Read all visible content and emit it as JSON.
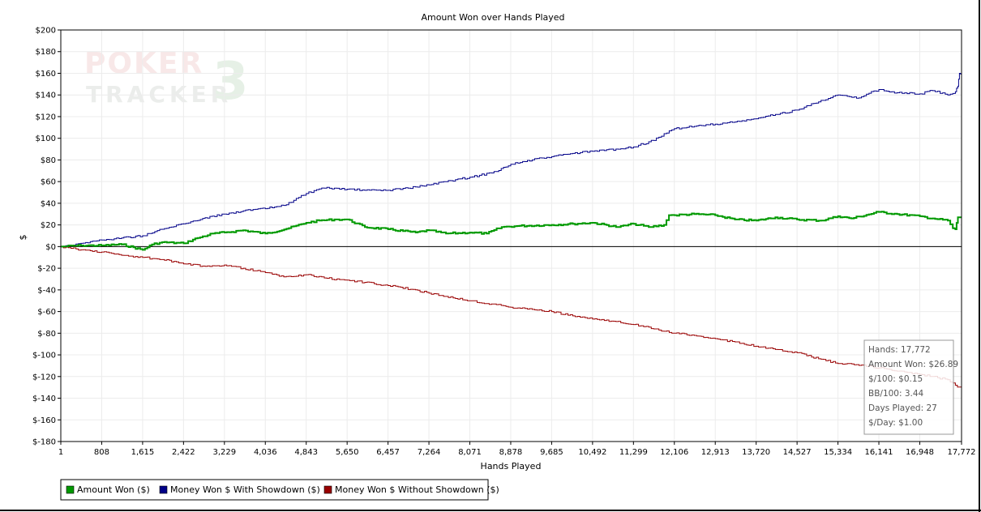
{
  "chart_data": {
    "type": "line",
    "title": "Amount Won over Hands Played",
    "xlabel": "Hands Played",
    "ylabel": "$",
    "xlim": [
      1,
      17772
    ],
    "ylim": [
      -180,
      200
    ],
    "x_ticks": [
      1,
      808,
      1615,
      2422,
      3229,
      4036,
      4843,
      5650,
      6457,
      7264,
      8071,
      8878,
      9685,
      10492,
      11299,
      12106,
      12913,
      13720,
      14527,
      15334,
      16141,
      16948,
      17772
    ],
    "x_tick_labels": [
      "1",
      "808",
      "1,615",
      "2,422",
      "3,229",
      "4,036",
      "4,843",
      "5,650",
      "6,457",
      "7,264",
      "8,071",
      "8,878",
      "9,685",
      "10,492",
      "11,299",
      "12,106",
      "12,913",
      "13,720",
      "14,527",
      "15,334",
      "16,141",
      "16,948",
      "17,772"
    ],
    "y_ticks": [
      200,
      180,
      160,
      140,
      120,
      100,
      80,
      60,
      40,
      20,
      0,
      -20,
      -40,
      -60,
      -80,
      -100,
      -120,
      -140,
      -160,
      -180
    ],
    "y_tick_labels": [
      "$200",
      "$180",
      "$160",
      "$140",
      "$120",
      "$100",
      "$80",
      "$60",
      "$40",
      "$20",
      "$0",
      "$-20",
      "$-40",
      "$-60",
      "$-80",
      "$-100",
      "$-120",
      "$-140",
      "$-160",
      "$-180"
    ],
    "grid": true,
    "legend_position": "bottom-left",
    "series": [
      {
        "name": "Amount Won ($)",
        "color": "#009900",
        "x": [
          1,
          400,
          800,
          1200,
          1615,
          1800,
          2000,
          2422,
          2700,
          3000,
          3229,
          3600,
          4036,
          4500,
          4843,
          5100,
          5400,
          5650,
          6000,
          6457,
          7000,
          7264,
          7600,
          8071,
          8400,
          8700,
          9000,
          9685,
          10100,
          10492,
          11000,
          11299,
          11600,
          11900,
          12000,
          12106,
          12500,
          12913,
          13300,
          13720,
          14100,
          14527,
          15000,
          15334,
          15600,
          16141,
          16500,
          16948,
          17200,
          17500,
          17600,
          17650,
          17700,
          17772
        ],
        "values": [
          0,
          1,
          1,
          2,
          -3,
          2,
          4,
          3,
          8,
          12,
          13,
          15,
          12,
          17,
          22,
          24,
          25,
          25,
          18,
          16,
          13,
          15,
          12,
          13,
          12,
          18,
          19,
          20,
          21,
          22,
          18,
          21,
          18,
          20,
          29,
          29,
          30,
          29,
          25,
          24,
          27,
          25,
          24,
          28,
          26,
          32,
          30,
          28,
          26,
          24,
          17,
          16,
          27,
          27
        ]
      },
      {
        "name": "Money Won $ With Showdown ($)",
        "color": "#000088",
        "x": [
          1,
          400,
          808,
          1200,
          1615,
          2000,
          2422,
          2800,
          3229,
          3600,
          4036,
          4400,
          4843,
          5200,
          5650,
          6000,
          6457,
          7000,
          7264,
          7600,
          8071,
          8500,
          8878,
          9300,
          9685,
          10100,
          10492,
          11000,
          11299,
          11700,
          12106,
          12500,
          12913,
          13300,
          13720,
          14100,
          14527,
          15000,
          15334,
          15700,
          16141,
          16500,
          16948,
          17200,
          17500,
          17650,
          17700,
          17730,
          17772
        ],
        "values": [
          0,
          3,
          6,
          8,
          10,
          16,
          21,
          26,
          30,
          33,
          35,
          38,
          49,
          54,
          53,
          52,
          52,
          55,
          57,
          60,
          64,
          68,
          76,
          80,
          83,
          86,
          88,
          90,
          92,
          98,
          109,
          111,
          113,
          115,
          118,
          122,
          126,
          135,
          140,
          137,
          145,
          142,
          141,
          144,
          140,
          143,
          148,
          160,
          158
        ]
      },
      {
        "name": "Money Won $ Without Showdown ($)",
        "color": "#990000",
        "x": [
          1,
          400,
          808,
          1200,
          1615,
          2000,
          2422,
          2800,
          3229,
          3600,
          4036,
          4400,
          4843,
          5200,
          5650,
          6000,
          6457,
          7000,
          7264,
          7600,
          8071,
          8500,
          8878,
          9300,
          9685,
          10100,
          10492,
          11000,
          11299,
          11700,
          12106,
          12500,
          12913,
          13300,
          13720,
          14100,
          14527,
          15000,
          15334,
          15700,
          16141,
          16500,
          16948,
          17200,
          17500,
          17650,
          17772
        ],
        "values": [
          0,
          -3,
          -5,
          -8,
          -10,
          -12,
          -16,
          -18,
          -17,
          -20,
          -24,
          -28,
          -26,
          -29,
          -31,
          -33,
          -36,
          -40,
          -43,
          -46,
          -50,
          -53,
          -56,
          -58,
          -60,
          -64,
          -67,
          -69,
          -72,
          -76,
          -80,
          -82,
          -85,
          -88,
          -92,
          -95,
          -98,
          -104,
          -108,
          -109,
          -112,
          -115,
          -118,
          -120,
          -123,
          -128,
          -131
        ]
      }
    ]
  },
  "stats": {
    "hands": "Hands: 17,772",
    "amount_won": "Amount Won: $26.89",
    "per_100": "$/100: $0.15",
    "bb_per_100": "BB/100: 3.44",
    "days_played": "Days Played: 27",
    "per_day": "$/Day: $1.00"
  },
  "logo": {
    "line1": "POKER",
    "line2": "TRACKER",
    "mark": "3"
  }
}
